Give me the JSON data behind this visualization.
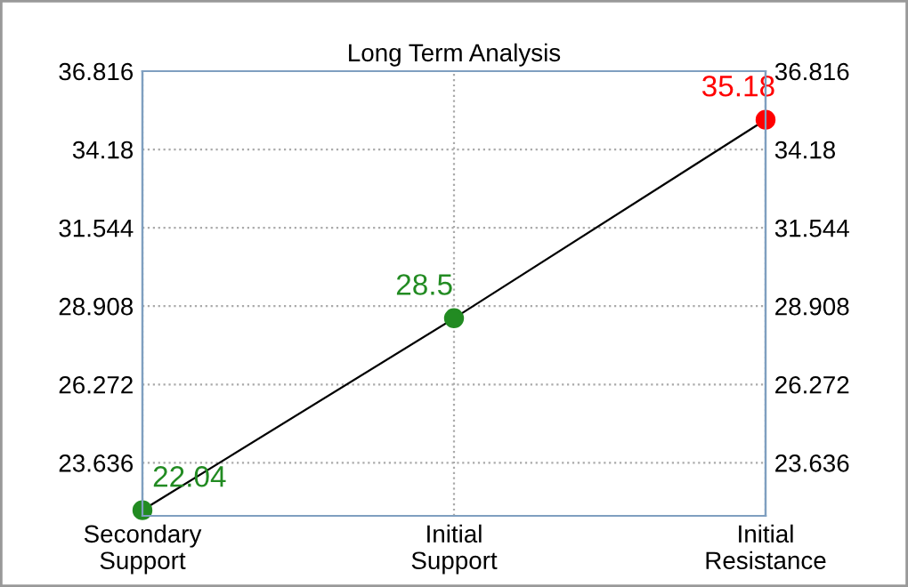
{
  "chart_data": {
    "type": "line",
    "title": "Long Term Analysis",
    "categories": [
      "Secondary\nSupport",
      "Initial\nSupport",
      "Initial\nResistance"
    ],
    "series": [
      {
        "color": "#000000",
        "colors": [
          "#228b22",
          "#228b22",
          "#ff0000"
        ],
        "values": [
          22.04,
          28.5,
          35.18
        ]
      }
    ],
    "data_labels": true,
    "marker": "circle",
    "line_style": "solid",
    "grid": true,
    "ylim": [
      21.85,
      36.816
    ],
    "yticks": [
      23.636,
      26.272,
      28.908,
      31.544,
      34.18,
      36.816
    ],
    "y2lim": [
      21.85,
      36.816
    ],
    "y2ticks": [
      23.636,
      26.272,
      28.908,
      31.544,
      34.18,
      36.816
    ]
  }
}
